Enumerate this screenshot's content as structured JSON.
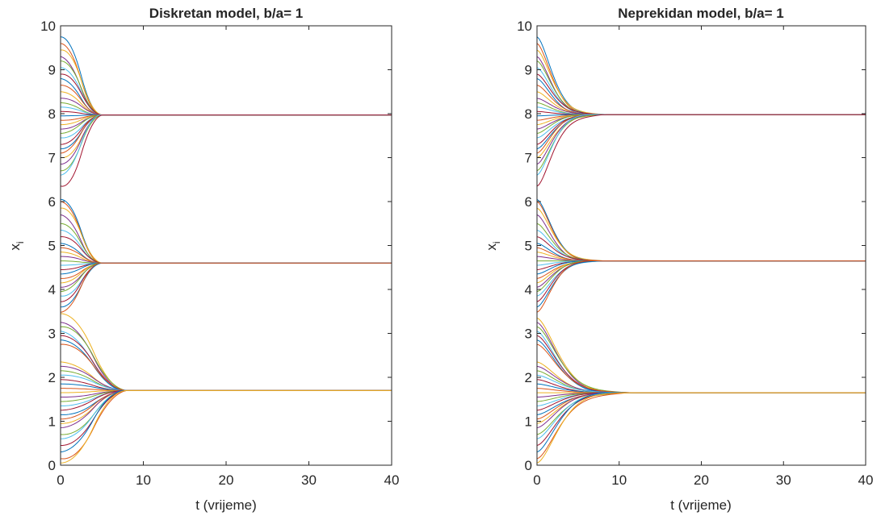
{
  "chart_data": [
    {
      "type": "line",
      "title": "Diskretan model, b/a= 1",
      "xlabel": "t (vrijeme)",
      "ylabel": "x",
      "ylabel_sub": "i",
      "xlim": [
        0,
        40
      ],
      "ylim": [
        0,
        10
      ],
      "x_ticks": [
        "0",
        "10",
        "20",
        "30",
        "40"
      ],
      "y_ticks": [
        "0",
        "1",
        "2",
        "3",
        "4",
        "5",
        "6",
        "7",
        "8",
        "9",
        "10"
      ],
      "legend": "none",
      "grid": false,
      "model": "discrete",
      "clusters": [
        {
          "consensus": 7.97,
          "settle_time": 5,
          "initial_values": [
            9.75,
            9.6,
            9.45,
            9.3,
            9.2,
            9.05,
            8.9,
            8.8,
            8.65,
            8.5,
            8.35,
            8.25,
            8.15,
            8.05,
            7.95,
            7.85,
            7.75,
            7.65,
            7.55,
            7.45,
            7.3,
            7.2,
            7.1,
            7.0,
            6.85,
            6.7,
            6.6,
            6.35
          ]
        },
        {
          "consensus": 4.6,
          "settle_time": 5,
          "initial_values": [
            6.05,
            6.0,
            5.85,
            5.7,
            5.5,
            5.35,
            5.2,
            5.05,
            4.95,
            4.85,
            4.75,
            4.65,
            4.55,
            4.45,
            4.35,
            4.25,
            4.15,
            4.05,
            3.95,
            3.85,
            3.72,
            3.6,
            3.48
          ]
        },
        {
          "consensus": 1.7,
          "settle_time": 8,
          "initial_values": [
            3.45,
            3.25,
            3.15,
            3.05,
            2.95,
            2.85,
            2.75,
            2.35,
            2.25,
            2.15,
            2.05,
            1.95,
            1.85,
            1.75,
            1.65,
            1.55,
            1.45,
            1.35,
            1.25,
            1.15,
            1.05,
            0.95,
            0.85,
            0.7,
            0.6,
            0.45,
            0.3,
            0.15,
            0.05
          ]
        }
      ]
    },
    {
      "type": "line",
      "title": "Neprekidan model, b/a= 1",
      "xlabel": "t (vrijeme)",
      "ylabel": "x",
      "ylabel_sub": "i",
      "xlim": [
        0,
        40
      ],
      "ylim": [
        0,
        10
      ],
      "x_ticks": [
        "0",
        "10",
        "20",
        "30",
        "40"
      ],
      "y_ticks": [
        "0",
        "1",
        "2",
        "3",
        "4",
        "5",
        "6",
        "7",
        "8",
        "9",
        "10"
      ],
      "legend": "none",
      "grid": false,
      "model": "continuous",
      "clusters": [
        {
          "consensus": 7.98,
          "settle_time": 8,
          "initial_values": [
            9.75,
            9.6,
            9.45,
            9.3,
            9.2,
            9.05,
            8.9,
            8.8,
            8.65,
            8.5,
            8.35,
            8.25,
            8.15,
            8.05,
            7.95,
            7.85,
            7.75,
            7.65,
            7.55,
            7.45,
            7.3,
            7.2,
            7.1,
            7.0,
            6.85,
            6.7,
            6.6,
            6.35
          ]
        },
        {
          "consensus": 4.65,
          "settle_time": 8,
          "initial_values": [
            6.05,
            6.0,
            5.85,
            5.7,
            5.5,
            5.35,
            5.2,
            5.05,
            4.95,
            4.85,
            4.75,
            4.65,
            4.55,
            4.45,
            4.35,
            4.25,
            4.15,
            4.05,
            3.95,
            3.85,
            3.72,
            3.6,
            3.48
          ]
        },
        {
          "consensus": 1.65,
          "settle_time": 11,
          "initial_values": [
            3.35,
            3.25,
            3.15,
            3.05,
            2.95,
            2.85,
            2.75,
            2.35,
            2.25,
            2.15,
            2.05,
            1.95,
            1.85,
            1.75,
            1.65,
            1.55,
            1.45,
            1.35,
            1.25,
            1.15,
            1.05,
            0.95,
            0.85,
            0.7,
            0.6,
            0.45,
            0.3,
            0.15,
            0.05
          ]
        }
      ]
    }
  ],
  "series_colors": [
    "#0072BD",
    "#D95319",
    "#EDB120",
    "#7E2F8E",
    "#77AC30",
    "#4DBEEE",
    "#A2142F"
  ]
}
